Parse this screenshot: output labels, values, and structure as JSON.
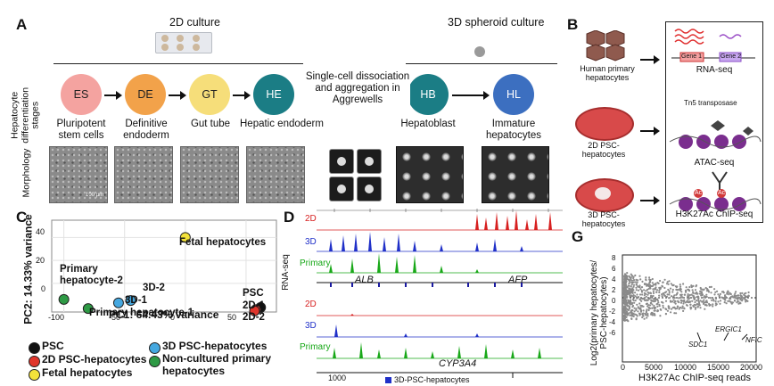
{
  "panels": {
    "a": "A",
    "b": "B",
    "c": "C",
    "d": "D",
    "g": "G"
  },
  "panelA": {
    "culture2d": "2D culture",
    "culture3d": "3D spheroid culture",
    "row_label_stages": "Hepatocyte differentiation stages",
    "row_label_morph": "Morphology",
    "dissociation": "Single-cell dissociation and aggregation in Aggrewells",
    "scale_bar": "100 µm",
    "stages": [
      {
        "abbr": "ES",
        "name": "Pluripotent stem cells",
        "color": "#f4a3a0"
      },
      {
        "abbr": "DE",
        "name": "Definitive endoderm",
        "color": "#f2a24a"
      },
      {
        "abbr": "GT",
        "name": "Gut tube",
        "color": "#f6de7a"
      },
      {
        "abbr": "HE",
        "name": "Hepatic endoderm",
        "color": "#1b7d85"
      },
      {
        "abbr": "HB",
        "name": "Hepatoblast",
        "color": "#1b7d85"
      },
      {
        "abbr": "HL",
        "name": "Immature hepatocytes",
        "color": "#3c6fc0"
      }
    ]
  },
  "panelB": {
    "sources": [
      "Human primary hepatocytes",
      "2D PSC-hepatocytes",
      "3D PSC-hepatocytes"
    ],
    "assays": [
      "RNA-seq",
      "ATAC-seq",
      "H3K27Ac ChIP-seq"
    ],
    "tn5": "Tn5 transposase",
    "gene1": "Gene 1",
    "gene2": "Gene 2",
    "ac": "Ac"
  },
  "panelC": {
    "xlabel": "PC1: 64.43% variance",
    "ylabel": "PC2: 14.33% variance",
    "xticks": [
      "-100",
      "-50",
      "0",
      "50"
    ],
    "yticks": [
      "40",
      "20",
      "0"
    ],
    "labels": {
      "fetal": "Fetal hepatocytes",
      "primary2": "Primary hepatocyte-2",
      "primary1": "Primary hepatocyte-1",
      "d3_2": "3D-2",
      "d3_1": "3D-1",
      "psc": "PSC",
      "d2_1": "2D-1",
      "d2_2": "2D-2"
    },
    "legend": [
      {
        "label": "PSC",
        "color": "#111111"
      },
      {
        "label": "2D PSC-hepatocytes",
        "color": "#e0352b"
      },
      {
        "label": "Fetal hepatocytes",
        "color": "#f3e23a"
      },
      {
        "label": "3D PSC-hepatocytes",
        "color": "#45a8e0"
      },
      {
        "label": "Non-cultured primary hepatocytes",
        "color": "#2e9a45"
      }
    ]
  },
  "chart_data": {
    "type": "scatter",
    "xlabel": "PC1: 64.43% variance",
    "ylabel": "PC2: 14.33% variance",
    "xlim": [
      -110,
      75
    ],
    "ylim": [
      -25,
      55
    ],
    "points": [
      {
        "label": "Fetal hepatocytes",
        "x": 0,
        "y": 40,
        "color": "#f3e23a"
      },
      {
        "label": "Primary hepatocyte-2",
        "x": -100,
        "y": -14,
        "color": "#2e9a45"
      },
      {
        "label": "Primary hepatocyte-1",
        "x": -80,
        "y": -22,
        "color": "#2e9a45"
      },
      {
        "label": "3D-2",
        "x": -45,
        "y": -15,
        "color": "#45a8e0"
      },
      {
        "label": "3D-1",
        "x": -55,
        "y": -17,
        "color": "#45a8e0"
      },
      {
        "label": "PSC",
        "x": 62,
        "y": -21,
        "color": "#111111"
      },
      {
        "label": "2D-1",
        "x": 58,
        "y": -23,
        "color": "#e0352b"
      },
      {
        "label": "2D-2",
        "x": 57,
        "y": -24,
        "color": "#e0352b"
      }
    ]
  },
  "panelD": {
    "ylabel": "RNA-seq",
    "tracks": [
      "2D",
      "3D",
      "Primary",
      "2D",
      "3D",
      "Primary"
    ],
    "scale": "10",
    "genes": [
      "ALB",
      "AFP",
      "CYP3A4"
    ],
    "bottom_tick": "1000",
    "legend_note": "3D-PSC-hepatocytes"
  },
  "panelG": {
    "xlabel": "H3K27Ac ChIP-seq reads",
    "ylabel": "Log2(primary hepatocytes/ PSC-hepatocytes)",
    "xticks": [
      "0",
      "5000",
      "10000",
      "15000",
      "20000"
    ],
    "yticks": [
      "8",
      "6",
      "4",
      "2",
      "0",
      "-2",
      "-4",
      "-6"
    ],
    "genes": [
      "ERGIC1",
      "NFIC",
      "SDC1"
    ]
  }
}
